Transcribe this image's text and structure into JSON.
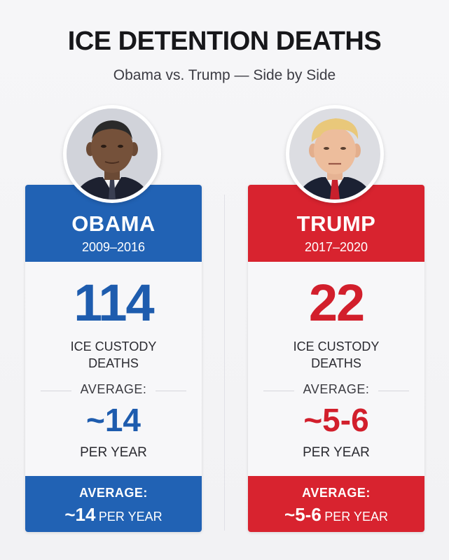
{
  "title": "ICE DETENTION DEATHS",
  "subtitle": "Obama vs. Trump — Side by Side",
  "colors": {
    "blue": "#2162b4",
    "red": "#d8232f"
  },
  "left": {
    "name": "OBAMA",
    "years": "2009–2016",
    "deaths": "114",
    "deaths_label_line1": "ICE CUSTODY",
    "deaths_label_line2": "DEATHS",
    "average_label": "AVERAGE:",
    "average_value": "~14",
    "per_year": "PER YEAR",
    "footer_label": "AVERAGE:",
    "footer_value": "~14",
    "footer_unit": "PER YEAR"
  },
  "right": {
    "name": "TRUMP",
    "years": "2017–2020",
    "deaths": "22",
    "deaths_label_line1": "ICE CUSTODY",
    "deaths_label_line2": "DEATHS",
    "average_label": "AVERAGE:",
    "average_value": "~5-6",
    "per_year": "PER YEAR",
    "footer_label": "AVERAGE:",
    "footer_value": "~5-6",
    "footer_unit": "PER YEAR"
  }
}
